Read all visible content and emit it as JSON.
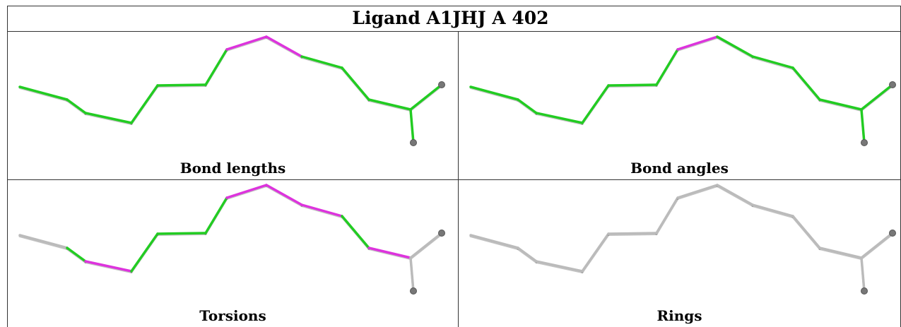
{
  "title": "Ligand A1JHJ A 402",
  "colors": {
    "ok": "#22cc22",
    "outlier": "#dd33dd",
    "neutral": "#bbbbbb",
    "atom": "#777777",
    "border": "#333333"
  },
  "panels": [
    {
      "caption": "Bond lengths",
      "bond_states": [
        "ok",
        "ok",
        "ok",
        "ok",
        "ok",
        "ok",
        "outlier",
        "outlier",
        "ok",
        "ok",
        "ok",
        "ok",
        "ok",
        "ok"
      ]
    },
    {
      "caption": "Bond angles",
      "bond_states": [
        "ok",
        "ok",
        "ok",
        "ok",
        "ok",
        "ok",
        "outlier",
        "ok",
        "ok",
        "ok",
        "ok",
        "ok",
        "ok",
        "ok"
      ]
    },
    {
      "caption": "Torsions",
      "bond_states": [
        "neutral",
        "ok",
        "outlier",
        "ok",
        "ok",
        "ok",
        "outlier",
        "outlier",
        "outlier",
        "ok",
        "outlier",
        "neutral",
        "neutral",
        "neutral"
      ]
    },
    {
      "caption": "Rings",
      "bond_states": [
        "neutral",
        "neutral",
        "neutral",
        "neutral",
        "neutral",
        "neutral",
        "neutral",
        "neutral",
        "neutral",
        "neutral",
        "neutral",
        "neutral",
        "neutral",
        "neutral"
      ]
    }
  ]
}
